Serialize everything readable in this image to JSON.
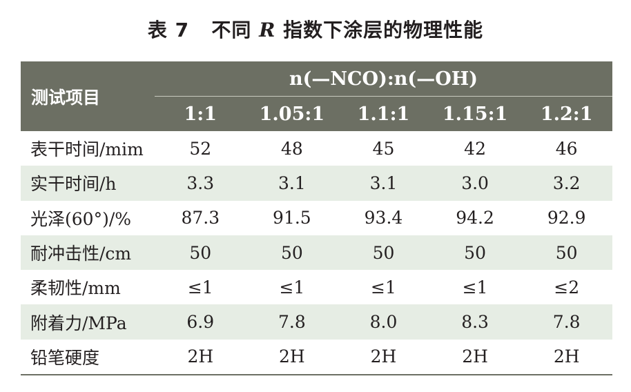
{
  "caption": {
    "label": "表 7",
    "title_pre": "不同",
    "title_var": "R",
    "title_post": "指数下涂层的物理性能"
  },
  "table": {
    "item_header": "测试项目",
    "ratio_header": "n(—NCO):n(—OH)",
    "ratios": [
      "1:1",
      "1.05:1",
      "1.1:1",
      "1.15:1",
      "1.2:1"
    ],
    "rows": [
      {
        "label": "表干时间/mim",
        "values": [
          "52",
          "48",
          "45",
          "42",
          "46"
        ]
      },
      {
        "label": "实干时间/h",
        "values": [
          "3.3",
          "3.1",
          "3.1",
          "3.0",
          "3.2"
        ]
      },
      {
        "label": "光泽(60°)/%",
        "values": [
          "87.3",
          "91.5",
          "93.4",
          "94.2",
          "92.9"
        ]
      },
      {
        "label": "耐冲击性/cm",
        "values": [
          "50",
          "50",
          "50",
          "50",
          "50"
        ]
      },
      {
        "label": "柔韧性/mm",
        "values": [
          "≤1",
          "≤1",
          "≤1",
          "≤1",
          "≤2"
        ]
      },
      {
        "label": "附着力/MPa",
        "values": [
          "6.9",
          "7.8",
          "8.0",
          "8.3",
          "7.8"
        ]
      },
      {
        "label": "铅笔硬度",
        "values": [
          "2H",
          "2H",
          "2H",
          "2H",
          "2H"
        ]
      }
    ]
  }
}
